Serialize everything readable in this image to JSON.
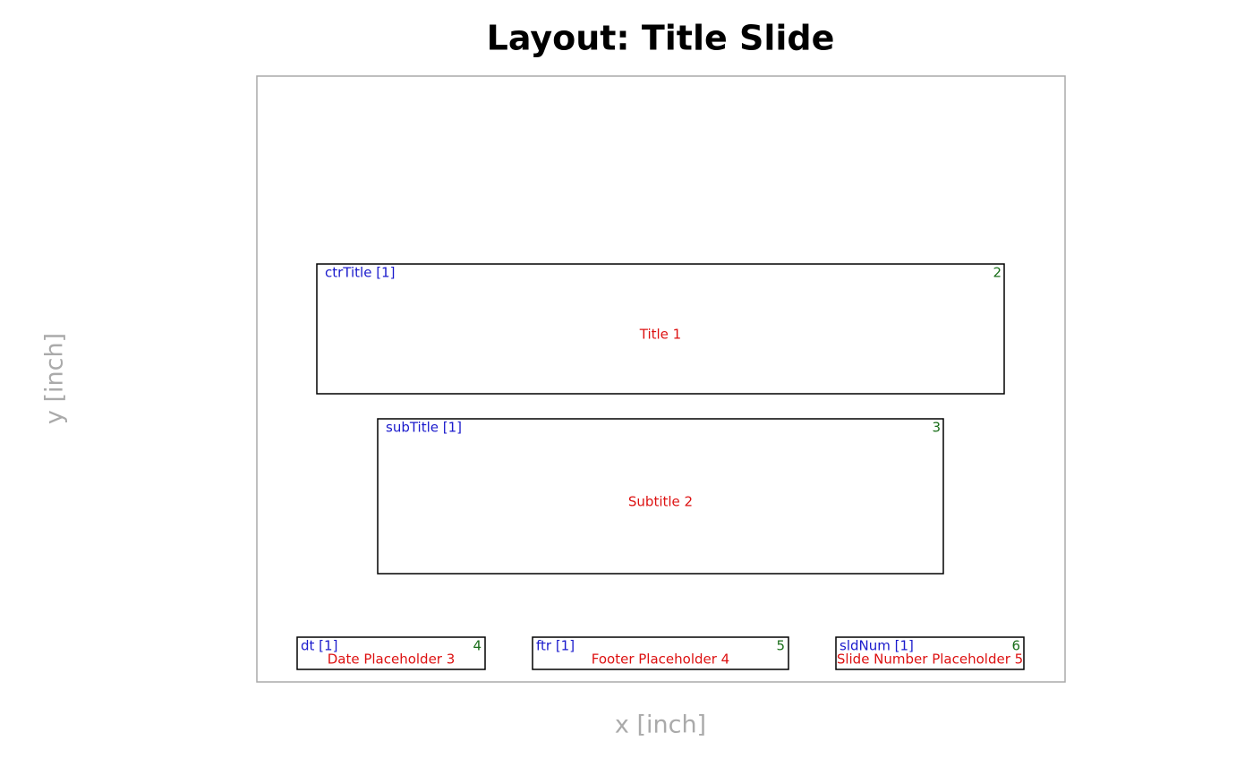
{
  "title": "Layout: Title Slide",
  "x_label": "x [inch]",
  "y_label": "y [inch]",
  "placeholders": [
    {
      "label": "ctrTitle [1]",
      "id": 2,
      "name": "Title 1"
    },
    {
      "label": "subTitle [1]",
      "id": 3,
      "name": "Subtitle 2"
    },
    {
      "label": "dt [1]",
      "id": 4,
      "name": "Date Placeholder 3"
    },
    {
      "label": "ftr [1]",
      "id": 5,
      "name": "Footer Placeholder 4"
    },
    {
      "label": "sldNum [1]",
      "id": 6,
      "name": "Slide Number Placeholder 5"
    }
  ]
}
